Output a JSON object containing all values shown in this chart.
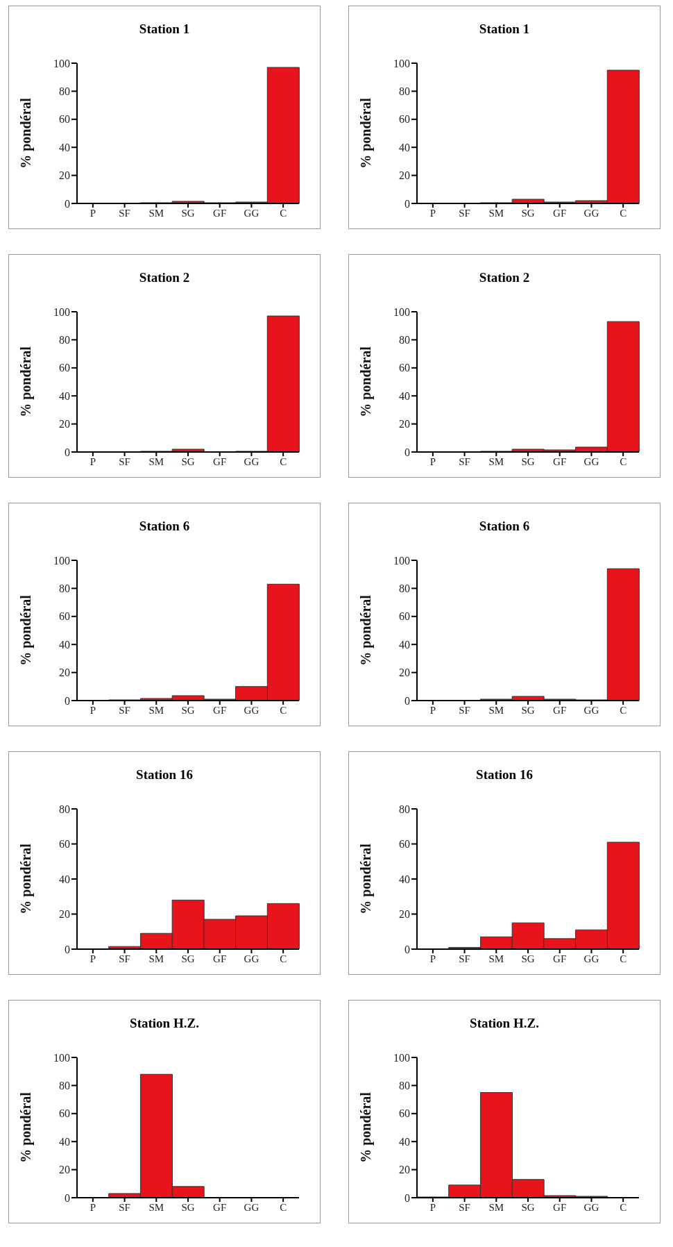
{
  "chart_data": [
    {
      "type": "bar",
      "title": "Station 1",
      "ylabel": "% pondéral",
      "categories": [
        "P",
        "SF",
        "SM",
        "SG",
        "GF",
        "GG",
        "C"
      ],
      "values": [
        0,
        0,
        0.5,
        1.5,
        0.5,
        1,
        97
      ],
      "color": "#e8141c",
      "ylim": [
        0,
        100
      ],
      "yticks": [
        0,
        20,
        40,
        60,
        80,
        100
      ]
    },
    {
      "type": "bar",
      "title": "Station 1",
      "ylabel": "% pondéral",
      "categories": [
        "P",
        "SF",
        "SM",
        "SG",
        "GF",
        "GG",
        "C"
      ],
      "values": [
        0,
        0,
        0.5,
        3,
        1,
        2,
        95
      ],
      "color": "#e8141c",
      "ylim": [
        0,
        100
      ],
      "yticks": [
        0,
        20,
        40,
        60,
        80,
        100
      ]
    },
    {
      "type": "bar",
      "title": "Station 2",
      "ylabel": "% pondéral",
      "categories": [
        "P",
        "SF",
        "SM",
        "SG",
        "GF",
        "GG",
        "C"
      ],
      "values": [
        0,
        0,
        0.5,
        2,
        0,
        0.5,
        97
      ],
      "color": "#e8141c",
      "ylim": [
        0,
        100
      ],
      "yticks": [
        0,
        20,
        40,
        60,
        80,
        100
      ]
    },
    {
      "type": "bar",
      "title": "Station 2",
      "ylabel": "% pondéral",
      "categories": [
        "P",
        "SF",
        "SM",
        "SG",
        "GF",
        "GG",
        "C"
      ],
      "values": [
        0,
        0,
        0.5,
        2,
        1.5,
        3.5,
        93
      ],
      "color": "#e8141c",
      "ylim": [
        0,
        100
      ],
      "yticks": [
        0,
        20,
        40,
        60,
        80,
        100
      ]
    },
    {
      "type": "bar",
      "title": "Station 6",
      "ylabel": "% pondéral",
      "categories": [
        "P",
        "SF",
        "SM",
        "SG",
        "GF",
        "GG",
        "C"
      ],
      "values": [
        0,
        0.5,
        1.5,
        3.5,
        1,
        10,
        83
      ],
      "color": "#e8141c",
      "ylim": [
        0,
        100
      ],
      "yticks": [
        0,
        20,
        40,
        60,
        80,
        100
      ]
    },
    {
      "type": "bar",
      "title": "Station 6",
      "ylabel": "% pondéral",
      "categories": [
        "P",
        "SF",
        "SM",
        "SG",
        "GF",
        "GG",
        "C"
      ],
      "values": [
        0,
        0,
        1,
        3,
        1,
        0.5,
        94
      ],
      "color": "#e8141c",
      "ylim": [
        0,
        100
      ],
      "yticks": [
        0,
        20,
        40,
        60,
        80,
        100
      ]
    },
    {
      "type": "bar",
      "title": "Station 16",
      "ylabel": "% pondéral",
      "categories": [
        "P",
        "SF",
        "SM",
        "SG",
        "GF",
        "GG",
        "C"
      ],
      "values": [
        0,
        1.5,
        9,
        28,
        17,
        19,
        26
      ],
      "color": "#e8141c",
      "ylim": [
        0,
        80
      ],
      "yticks": [
        0,
        20,
        40,
        60,
        80
      ]
    },
    {
      "type": "bar",
      "title": "Station 16",
      "ylabel": "% pondéral",
      "categories": [
        "P",
        "SF",
        "SM",
        "SG",
        "GF",
        "GG",
        "C"
      ],
      "values": [
        0,
        1,
        7,
        15,
        6,
        11,
        61
      ],
      "color": "#e8141c",
      "ylim": [
        0,
        80
      ],
      "yticks": [
        0,
        20,
        40,
        60,
        80
      ]
    },
    {
      "type": "bar",
      "title": "Station H.Z.",
      "ylabel": "% pondéral",
      "categories": [
        "P",
        "SF",
        "SM",
        "SG",
        "GF",
        "GG",
        "C"
      ],
      "values": [
        0,
        3,
        88,
        8,
        0,
        0,
        0
      ],
      "color": "#e8141c",
      "ylim": [
        0,
        100
      ],
      "yticks": [
        0,
        20,
        40,
        60,
        80,
        100
      ]
    },
    {
      "type": "bar",
      "title": "Station H.Z.",
      "ylabel": "% pondéral",
      "categories": [
        "P",
        "SF",
        "SM",
        "SG",
        "GF",
        "GG",
        "C"
      ],
      "values": [
        0.5,
        9,
        75,
        13,
        1.5,
        1,
        0
      ],
      "color": "#e8141c",
      "ylim": [
        0,
        100
      ],
      "yticks": [
        0,
        20,
        40,
        60,
        80,
        100
      ]
    }
  ]
}
